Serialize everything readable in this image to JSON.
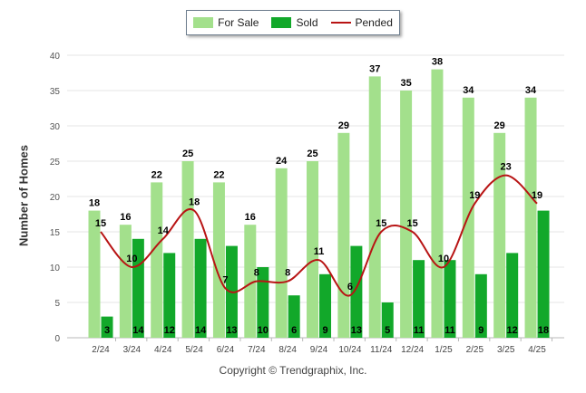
{
  "chart_data": {
    "type": "bar",
    "categories": [
      "2/24",
      "3/24",
      "4/24",
      "5/24",
      "6/24",
      "7/24",
      "8/24",
      "9/24",
      "10/24",
      "11/24",
      "12/24",
      "1/25",
      "2/25",
      "3/25",
      "4/25"
    ],
    "series": [
      {
        "name": "For Sale",
        "type": "bar",
        "color": "#a3e08c",
        "values": [
          18,
          16,
          22,
          25,
          22,
          16,
          24,
          25,
          29,
          37,
          35,
          38,
          34,
          29,
          34
        ]
      },
      {
        "name": "Sold",
        "type": "bar",
        "color": "#12a82a",
        "values": [
          3,
          14,
          12,
          14,
          13,
          10,
          6,
          9,
          13,
          5,
          11,
          11,
          9,
          12,
          18
        ]
      },
      {
        "name": "Pended",
        "type": "line",
        "color": "#b81414",
        "values": [
          15,
          10,
          14,
          18,
          7,
          8,
          8,
          11,
          6,
          15,
          15,
          10,
          19,
          23,
          19
        ]
      }
    ],
    "ylabel": "Number of Homes",
    "ylim": [
      0,
      40
    ],
    "yticks": [
      0,
      5,
      10,
      15,
      20,
      25,
      30,
      35,
      40
    ],
    "grid": true,
    "legend_position": "top-center"
  },
  "footer": "Copyright © Trendgraphix, Inc."
}
